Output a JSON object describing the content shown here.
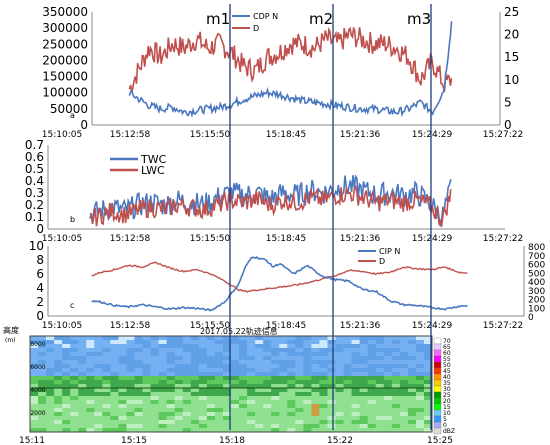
{
  "chart_data": [
    {
      "panel_label": "a",
      "type": "line",
      "x_ticks": [
        "15:10:05",
        "15:12:58",
        "15:15:50",
        "15:18:45",
        "15:21:36",
        "15:24:29",
        "15:27:22"
      ],
      "y_left_ticks": [
        "0",
        "50000",
        "100000",
        "150000",
        "200000",
        "250000",
        "300000",
        "350000"
      ],
      "y_right_ticks": [
        "0",
        "5",
        "10",
        "15",
        "20",
        "25"
      ],
      "ylim_left": [
        0,
        350000
      ],
      "ylim_right": [
        0,
        25
      ],
      "series": [
        {
          "name": "CDP N",
          "axis": "left",
          "color": "#4a78c0",
          "x": [
            "15:11:40",
            "15:12:30",
            "15:13:00",
            "15:13:30",
            "15:14:00",
            "15:14:30",
            "15:15:00",
            "15:15:30",
            "15:16:00",
            "15:16:30",
            "15:17:00",
            "15:17:30",
            "15:18:00",
            "15:18:30",
            "15:19:00",
            "15:19:30",
            "15:20:00",
            "15:20:30",
            "15:21:00",
            "15:21:30",
            "15:22:00",
            "15:22:30",
            "15:23:00",
            "15:23:30",
            "15:24:00",
            "15:24:30",
            "15:25:00",
            "15:25:20"
          ],
          "values": [
            100000,
            60000,
            50000,
            55000,
            40000,
            45000,
            50000,
            55000,
            65000,
            80000,
            90000,
            100000,
            95000,
            85000,
            75000,
            70000,
            65000,
            60000,
            55000,
            50000,
            50000,
            45000,
            40000,
            50000,
            70000,
            40000,
            110000,
            330000
          ]
        },
        {
          "name": "D",
          "axis": "right",
          "color": "#c0504d",
          "x": [
            "15:11:40",
            "15:12:30",
            "15:13:00",
            "15:13:30",
            "15:14:00",
            "15:14:30",
            "15:15:00",
            "15:15:30",
            "15:16:00",
            "15:16:30",
            "15:17:00",
            "15:17:30",
            "15:18:00",
            "15:18:30",
            "15:19:00",
            "15:19:30",
            "15:20:00",
            "15:20:30",
            "15:21:00",
            "15:21:30",
            "15:22:00",
            "15:22:30",
            "15:23:00",
            "15:23:30",
            "15:24:00",
            "15:24:30",
            "15:25:00",
            "15:25:20"
          ],
          "values": [
            8,
            17,
            15,
            18,
            17,
            19,
            17,
            18,
            16,
            13,
            12,
            15,
            16,
            18,
            18,
            17,
            19,
            18,
            20,
            19,
            18,
            18,
            17,
            15,
            10,
            14,
            9,
            10
          ]
        }
      ]
    },
    {
      "panel_label": "b",
      "type": "line",
      "x_ticks": [
        "15:10:05",
        "15:12:58",
        "15:15:50",
        "15:18:45",
        "15:21:36",
        "15:24:29",
        "15:27:22"
      ],
      "y_left_ticks": [
        "0",
        "0.1",
        "0.2",
        "0.3",
        "0.4",
        "0.5",
        "0.6",
        "0.7"
      ],
      "ylim_left": [
        0,
        0.7
      ],
      "series": [
        {
          "name": "TWC",
          "color": "#4a78c0",
          "x": [
            "15:11:40",
            "15:12:30",
            "15:13:00",
            "15:13:30",
            "15:14:00",
            "15:14:30",
            "15:15:00",
            "15:15:30",
            "15:16:00",
            "15:16:30",
            "15:17:00",
            "15:17:30",
            "15:18:00",
            "15:18:30",
            "15:19:00",
            "15:19:30",
            "15:20:00",
            "15:20:30",
            "15:21:00",
            "15:21:30",
            "15:22:00",
            "15:22:30",
            "15:23:00",
            "15:23:30",
            "15:24:00",
            "15:24:30",
            "15:25:00",
            "15:25:20"
          ],
          "values": [
            0.12,
            0.18,
            0.15,
            0.2,
            0.22,
            0.2,
            0.24,
            0.22,
            0.2,
            0.26,
            0.3,
            0.28,
            0.3,
            0.25,
            0.3,
            0.28,
            0.32,
            0.3,
            0.34,
            0.36,
            0.32,
            0.28,
            0.3,
            0.28,
            0.3,
            0.22,
            0.1,
            0.35
          ]
        },
        {
          "name": "LWC",
          "color": "#c0504d",
          "x": [
            "15:11:40",
            "15:12:30",
            "15:13:00",
            "15:13:30",
            "15:14:00",
            "15:14:30",
            "15:15:00",
            "15:15:30",
            "15:16:00",
            "15:16:30",
            "15:17:00",
            "15:17:30",
            "15:18:00",
            "15:18:30",
            "15:19:00",
            "15:19:30",
            "15:20:00",
            "15:20:30",
            "15:21:00",
            "15:21:30",
            "15:22:00",
            "15:22:30",
            "15:23:00",
            "15:23:30",
            "15:24:00",
            "15:24:30",
            "15:25:00",
            "15:25:20"
          ],
          "values": [
            0.08,
            0.15,
            0.12,
            0.16,
            0.18,
            0.16,
            0.2,
            0.18,
            0.16,
            0.2,
            0.24,
            0.22,
            0.25,
            0.2,
            0.24,
            0.22,
            0.26,
            0.24,
            0.28,
            0.3,
            0.26,
            0.22,
            0.24,
            0.22,
            0.24,
            0.2,
            0.08,
            0.3
          ]
        }
      ]
    },
    {
      "panel_label": "c",
      "type": "line",
      "x_ticks": [
        "15:10:05",
        "15:12:58",
        "15:15:50",
        "15:18:45",
        "15:21:36",
        "15:24:29",
        "15:27:22"
      ],
      "y_left_ticks": [
        "0",
        "2",
        "4",
        "6",
        "8",
        "10"
      ],
      "y_right_ticks": [
        "0",
        "100",
        "200",
        "300",
        "400",
        "500",
        "600",
        "700",
        "800"
      ],
      "ylim_left": [
        0,
        10
      ],
      "ylim_right": [
        0,
        800
      ],
      "series": [
        {
          "name": "CIP N",
          "axis": "left",
          "color": "#4a78c0",
          "x": [
            "15:11:40",
            "15:12:00",
            "15:12:30",
            "15:13:00",
            "15:13:30",
            "15:14:00",
            "15:14:30",
            "15:15:00",
            "15:15:30",
            "15:16:00",
            "15:16:30",
            "15:17:00",
            "15:17:15",
            "15:17:30",
            "15:18:00",
            "15:18:15",
            "15:18:30",
            "15:19:00",
            "15:19:30",
            "15:20:00",
            "15:20:30",
            "15:21:00",
            "15:21:30",
            "15:22:00",
            "15:22:30",
            "15:23:00",
            "15:23:30",
            "15:24:00",
            "15:24:30",
            "15:25:00",
            "15:25:20"
          ],
          "values": [
            2.2,
            2.0,
            1.5,
            1.3,
            1.6,
            1.3,
            1.0,
            1.2,
            1.1,
            0.8,
            2.0,
            4.5,
            7.0,
            8.5,
            8.0,
            7.0,
            7.5,
            6.0,
            7.2,
            5.8,
            5.2,
            5.0,
            3.8,
            3.5,
            2.2,
            1.6,
            1.5,
            1.2,
            1.0,
            1.4,
            1.5
          ]
        },
        {
          "name": "D",
          "axis": "right",
          "color": "#c0504d",
          "x": [
            "15:11:40",
            "15:12:00",
            "15:12:30",
            "15:13:00",
            "15:13:30",
            "15:14:00",
            "15:14:30",
            "15:15:00",
            "15:15:30",
            "15:16:00",
            "15:16:30",
            "15:17:00",
            "15:17:15",
            "15:17:30",
            "15:18:00",
            "15:18:15",
            "15:18:30",
            "15:19:00",
            "15:19:30",
            "15:20:00",
            "15:20:30",
            "15:21:00",
            "15:21:30",
            "15:22:00",
            "15:22:30",
            "15:23:00",
            "15:23:30",
            "15:24:00",
            "15:24:30",
            "15:25:00",
            "15:25:20"
          ],
          "values": [
            460,
            500,
            530,
            580,
            560,
            610,
            550,
            510,
            530,
            480,
            400,
            300,
            280,
            290,
            310,
            320,
            330,
            350,
            380,
            420,
            460,
            520,
            510,
            480,
            500,
            560,
            540,
            530,
            560,
            500,
            490
          ]
        }
      ]
    },
    {
      "panel_label": "",
      "type": "heatmap",
      "title": "2017.05.22轨迹信息",
      "ylabel": "高度",
      "y_unit_label": "(m)",
      "x_ticks": [
        "15:11",
        "15:15",
        "15:18",
        "15:22",
        "15:25"
      ],
      "y_ticks": [
        "2000",
        "4000",
        "6000",
        "8000"
      ],
      "colorbar_ticks": [
        "70",
        "65",
        "60",
        "55",
        "50",
        "45",
        "40",
        "35",
        "30",
        "25",
        "20",
        "15",
        "10",
        "5",
        "0",
        "dBZ"
      ]
    }
  ],
  "markers": [
    {
      "label": "m1",
      "time": "15:15:58"
    },
    {
      "label": "m2",
      "time": "15:20:00"
    },
    {
      "label": "m3",
      "time": "15:24:29"
    }
  ]
}
